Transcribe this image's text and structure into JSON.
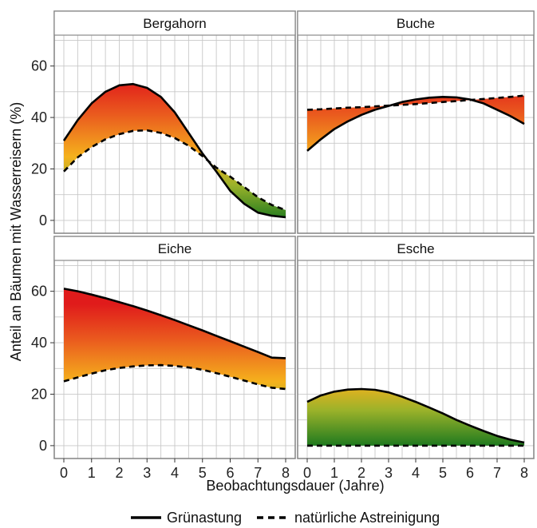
{
  "chart_data": {
    "type": "area",
    "facets": [
      {
        "title": "Bergahorn",
        "series": [
          {
            "name": "Grünastung",
            "x": [
              0,
              0.5,
              1,
              1.5,
              2,
              2.5,
              3,
              3.5,
              4,
              4.5,
              5,
              5.5,
              6,
              6.5,
              7,
              7.5,
              8
            ],
            "values": [
              31,
              39,
              45.5,
              50,
              52.5,
              53,
              51.5,
              48,
              42,
              34,
              26,
              19,
              11.5,
              6.5,
              3,
              1.8,
              1.2
            ]
          },
          {
            "name": "natürliche Astreinigung",
            "x": [
              0,
              0.5,
              1,
              1.5,
              2,
              2.5,
              3,
              3.5,
              4,
              4.5,
              5,
              5.5,
              6,
              6.5,
              7,
              7.5,
              8
            ],
            "values": [
              19,
              24.5,
              28.5,
              31.5,
              33.5,
              34.8,
              35,
              34,
              32,
              29,
              25,
              20.5,
              17,
              13,
              9,
              6,
              4
            ]
          }
        ]
      },
      {
        "title": "Buche",
        "series": [
          {
            "name": "Grünastung",
            "x": [
              0,
              0.5,
              1,
              1.5,
              2,
              2.5,
              3,
              3.5,
              4,
              4.5,
              5,
              5.5,
              6,
              6.5,
              7,
              7.5,
              8
            ],
            "values": [
              27,
              31.5,
              35.5,
              38.5,
              41,
              43,
              44.5,
              46,
              47,
              47.7,
              48,
              47.8,
              47,
              45.5,
              43,
              40.5,
              37.5
            ]
          },
          {
            "name": "natürliche Astreinigung",
            "x": [
              0,
              0.5,
              1,
              1.5,
              2,
              2.5,
              3,
              3.5,
              4,
              4.5,
              5,
              5.5,
              6,
              6.5,
              7,
              7.5,
              8
            ],
            "values": [
              43,
              43.2,
              43.5,
              43.8,
              44,
              44.3,
              44.6,
              44.9,
              45.2,
              45.6,
              46,
              46.4,
              46.8,
              47.2,
              47.6,
              48,
              48.5
            ]
          }
        ]
      },
      {
        "title": "Eiche",
        "series": [
          {
            "name": "Grünastung",
            "x": [
              0,
              0.5,
              1,
              1.5,
              2,
              2.5,
              3,
              3.5,
              4,
              4.5,
              5,
              5.5,
              6,
              6.5,
              7,
              7.5,
              8
            ],
            "values": [
              61,
              60,
              58.7,
              57.3,
              55.8,
              54.2,
              52.5,
              50.7,
              48.8,
              46.8,
              44.8,
              42.7,
              40.6,
              38.5,
              36.4,
              34.2,
              34
            ]
          },
          {
            "name": "natürliche Astreinigung",
            "x": [
              0,
              0.5,
              1,
              1.5,
              2,
              2.5,
              3,
              3.5,
              4,
              4.5,
              5,
              5.5,
              6,
              6.5,
              7,
              7.5,
              8
            ],
            "values": [
              25,
              26.5,
              28,
              29.3,
              30.2,
              30.8,
              31.2,
              31.3,
              31,
              30.4,
              29.5,
              28.2,
              26.8,
              25.3,
              23.8,
              22.5,
              22
            ]
          }
        ]
      },
      {
        "title": "Esche",
        "series": [
          {
            "name": "Grünastung",
            "x": [
              0,
              0.5,
              1,
              1.5,
              2,
              2.5,
              3,
              3.5,
              4,
              4.5,
              5,
              5.5,
              6,
              6.5,
              7,
              7.5,
              8
            ],
            "values": [
              17,
              19.5,
              21,
              21.8,
              22,
              21.7,
              20.7,
              19,
              17,
              14.8,
              12.5,
              10,
              7.8,
              5.7,
              3.8,
              2.3,
              1.2
            ]
          },
          {
            "name": "natürliche Astreinigung",
            "x": [
              0,
              0.5,
              1,
              1.5,
              2,
              2.5,
              3,
              3.5,
              4,
              4.5,
              5,
              5.5,
              6,
              6.5,
              7,
              7.5,
              8
            ],
            "values": [
              0,
              0,
              0,
              0,
              0,
              0,
              0,
              0,
              0,
              0,
              0,
              0,
              0,
              0,
              0,
              0,
              0
            ]
          }
        ]
      }
    ],
    "xlabel": "Beobachtungsdauer (Jahre)",
    "ylabel": "Anteil an Bäumen mit Wasserreisern (%)",
    "xlim": [
      0,
      8
    ],
    "ylim": [
      -5,
      72
    ],
    "xticks": [
      0,
      1,
      2,
      3,
      4,
      5,
      6,
      7,
      8
    ],
    "yticks": [
      0,
      20,
      40,
      60
    ],
    "grid": true,
    "legend": {
      "position": "bottom",
      "entries": [
        {
          "label": "Grünastung",
          "style": "solid"
        },
        {
          "label": "natürliche Astreinigung",
          "style": "dashed"
        }
      ]
    },
    "fill_colors": {
      "low": "#1f7a1f",
      "mid": "#f5b21d",
      "high": "#e01b1b"
    }
  }
}
